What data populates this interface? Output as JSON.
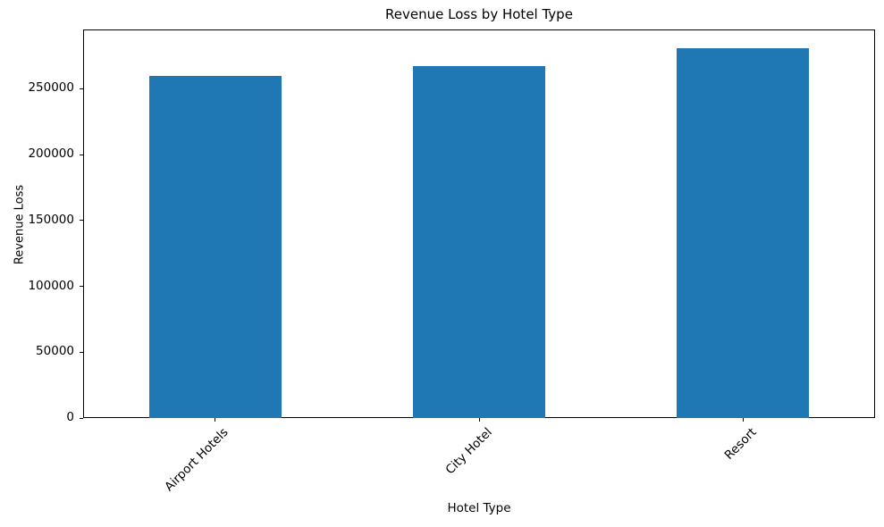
{
  "chart_data": {
    "type": "bar",
    "title": "Revenue Loss by Hotel Type",
    "xlabel": "Hotel Type",
    "ylabel": "Revenue Loss",
    "categories": [
      "Airport Hotels",
      "City Hotel",
      "Resort"
    ],
    "values": [
      260000,
      267000,
      281000
    ],
    "ylim": [
      0,
      295000
    ],
    "yticks": [
      0,
      50000,
      100000,
      150000,
      200000,
      250000
    ],
    "xtick_rotation_deg": 45,
    "bar_color": "#1f77b4",
    "bar_width_fraction": 0.5,
    "grid": false,
    "legend_position": "none",
    "spine_color": "#000000",
    "background_color": "#ffffff"
  }
}
